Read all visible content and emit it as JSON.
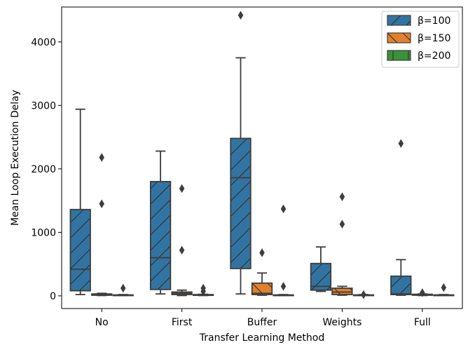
{
  "chart_data": {
    "type": "box",
    "xlabel": "Transfer Learning Method",
    "ylabel": "Mean Loop Execution Delay",
    "categories": [
      "No",
      "First",
      "Buffer",
      "Weights",
      "Full"
    ],
    "ylim": [
      -200,
      4550
    ],
    "yticks": [
      0,
      1000,
      2000,
      3000,
      4000
    ],
    "legend_position": "top-right",
    "grid": false,
    "series": [
      {
        "name": "β=100",
        "color": "#3274a1",
        "hatch": "diagonal",
        "boxes": [
          {
            "whislo": 20,
            "q1": 80,
            "med": 420,
            "q3": 1360,
            "whishi": 2940,
            "fliers": []
          },
          {
            "whislo": 30,
            "q1": 100,
            "med": 600,
            "q3": 1800,
            "whishi": 2280,
            "fliers": []
          },
          {
            "whislo": 30,
            "q1": 430,
            "med": 1860,
            "q3": 2480,
            "whishi": 3750,
            "fliers": [
              4420
            ]
          },
          {
            "whislo": 70,
            "q1": 90,
            "med": 150,
            "q3": 510,
            "whishi": 770,
            "fliers": []
          },
          {
            "whislo": 10,
            "q1": 20,
            "med": 30,
            "q3": 310,
            "whishi": 570,
            "fliers": [
              2400
            ]
          }
        ]
      },
      {
        "name": "β=150",
        "color": "#e1812c",
        "hatch": "backslash",
        "boxes": [
          {
            "whislo": 5,
            "q1": 10,
            "med": 20,
            "q3": 30,
            "whishi": 40,
            "fliers": [
              2180,
              1450
            ]
          },
          {
            "whislo": 5,
            "q1": 20,
            "med": 40,
            "q3": 60,
            "whishi": 90,
            "fliers": [
              1690,
              720
            ]
          },
          {
            "whislo": 10,
            "q1": 20,
            "med": 40,
            "q3": 200,
            "whishi": 360,
            "fliers": [
              680
            ]
          },
          {
            "whislo": 10,
            "q1": 20,
            "med": 60,
            "q3": 120,
            "whishi": 150,
            "fliers": [
              1560,
              1130
            ]
          },
          {
            "whislo": 5,
            "q1": 10,
            "med": 15,
            "q3": 25,
            "whishi": 30,
            "fliers": [
              50
            ]
          }
        ]
      },
      {
        "name": "β=200",
        "color": "#3a923a",
        "hatch": "vertical",
        "boxes": [
          {
            "whislo": 5,
            "q1": 8,
            "med": 10,
            "q3": 15,
            "whishi": 20,
            "fliers": [
              120
            ]
          },
          {
            "whislo": 5,
            "q1": 8,
            "med": 10,
            "q3": 20,
            "whishi": 25,
            "fliers": [
              120,
              70
            ]
          },
          {
            "whislo": 5,
            "q1": 8,
            "med": 10,
            "q3": 15,
            "whishi": 20,
            "fliers": [
              1370,
              150
            ]
          },
          {
            "whislo": 5,
            "q1": 8,
            "med": 10,
            "q3": 15,
            "whishi": 20,
            "fliers": [
              20
            ]
          },
          {
            "whislo": 5,
            "q1": 8,
            "med": 10,
            "q3": 15,
            "whishi": 20,
            "fliers": [
              130
            ]
          }
        ]
      }
    ]
  }
}
